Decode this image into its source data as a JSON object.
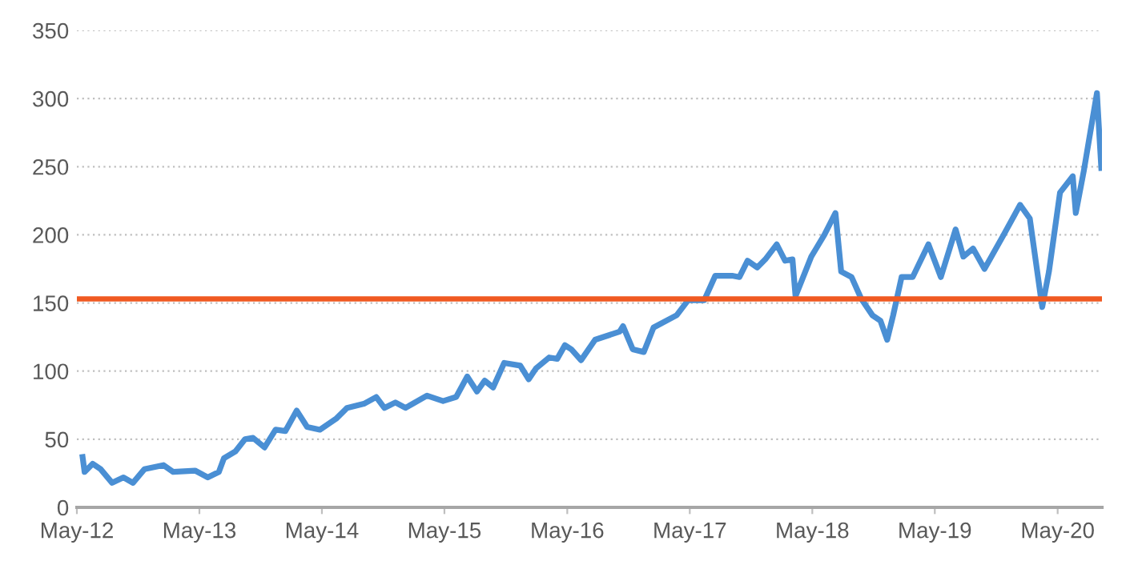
{
  "chart_data": {
    "type": "line",
    "x": [
      "2012-05-18",
      "2012-05-24",
      "2012-06-17",
      "2012-07-11",
      "2012-08-14",
      "2012-09-17",
      "2012-10-15",
      "2012-11-18",
      "2013-01-14",
      "2013-02-12",
      "2013-04-18",
      "2013-05-26",
      "2013-06-28",
      "2013-07-13",
      "2013-08-16",
      "2013-09-14",
      "2013-10-08",
      "2013-11-11",
      "2013-12-14",
      "2014-01-12",
      "2014-02-15",
      "2014-03-18",
      "2014-04-25",
      "2014-06-12",
      "2014-07-15",
      "2014-09-03",
      "2014-10-10",
      "2014-11-03",
      "2014-12-06",
      "2015-01-05",
      "2015-03-10",
      "2015-04-27",
      "2015-06-05",
      "2015-07-08",
      "2015-08-06",
      "2015-08-29",
      "2015-09-23",
      "2015-10-26",
      "2015-12-13",
      "2016-01-07",
      "2016-01-29",
      "2016-03-08",
      "2016-04-01",
      "2016-04-24",
      "2016-05-13",
      "2016-06-11",
      "2016-07-23",
      "2016-10-04",
      "2016-10-14",
      "2016-11-12",
      "2016-12-15",
      "2017-01-13",
      "2017-03-23",
      "2017-04-26",
      "2017-06-13",
      "2017-07-16",
      "2017-09-04",
      "2017-09-26",
      "2017-10-20",
      "2017-11-18",
      "2017-12-12",
      "2018-01-15",
      "2018-02-09",
      "2018-03-03",
      "2018-03-12",
      "2018-04-28",
      "2018-06-06",
      "2018-07-09",
      "2018-07-26",
      "2018-08-26",
      "2018-09-24",
      "2018-10-27",
      "2018-11-20",
      "2018-12-10",
      "2018-12-28",
      "2019-01-22",
      "2019-02-24",
      "2019-04-12",
      "2019-05-19",
      "2019-07-02",
      "2019-07-25",
      "2019-08-23",
      "2019-09-26",
      "2019-11-22",
      "2020-01-10",
      "2020-02-08",
      "2020-03-16",
      "2020-04-05",
      "2020-05-08",
      "2020-06-15",
      "2020-06-24",
      "2020-07-18",
      "2020-08-02",
      "2020-08-26",
      "2020-09-03",
      "2020-09-08"
    ],
    "series": [
      {
        "color": "#4a8fd4",
        "values": [
          37,
          26,
          32,
          28,
          18,
          22,
          18,
          28,
          31,
          26,
          27,
          22,
          26,
          36,
          41,
          50,
          51,
          44,
          57,
          56,
          71,
          59,
          57,
          65,
          73,
          76,
          81,
          73,
          77,
          73,
          82,
          78,
          81,
          96,
          85,
          93,
          88,
          106,
          104,
          94,
          102,
          110,
          109,
          119,
          116,
          108,
          123,
          129,
          133,
          116,
          114,
          132,
          141,
          152,
          152,
          170,
          170,
          169,
          181,
          176,
          182,
          193,
          181,
          182,
          155,
          184,
          200,
          216,
          173,
          169,
          153,
          141,
          137,
          123,
          141,
          169,
          169,
          193,
          169,
          204,
          184,
          190,
          175,
          200,
          222,
          212,
          147,
          173,
          231,
          243,
          216,
          247,
          269,
          304,
          270,
          249
        ]
      }
    ],
    "xlim": [
      "2012-05-01",
      "2020-09-10"
    ],
    "xticks": [
      {
        "value": "2012-05-01",
        "label": "May-12"
      },
      {
        "value": "2013-05-01",
        "label": "May-13"
      },
      {
        "value": "2014-05-01",
        "label": "May-14"
      },
      {
        "value": "2015-05-01",
        "label": "May-15"
      },
      {
        "value": "2016-05-01",
        "label": "May-16"
      },
      {
        "value": "2017-05-01",
        "label": "May-17"
      },
      {
        "value": "2018-05-01",
        "label": "May-18"
      },
      {
        "value": "2019-05-01",
        "label": "May-19"
      },
      {
        "value": "2020-05-01",
        "label": "May-20"
      }
    ],
    "ylim": [
      0,
      350
    ],
    "yticks": [
      0,
      50,
      100,
      150,
      200,
      250,
      300,
      350
    ],
    "grid": "y",
    "legend": false,
    "marker": "none",
    "line_style": "solid",
    "ref_lines": [
      {
        "axis": "y",
        "value": 153,
        "color": "#f05a22",
        "line_style": "solid"
      }
    ]
  }
}
